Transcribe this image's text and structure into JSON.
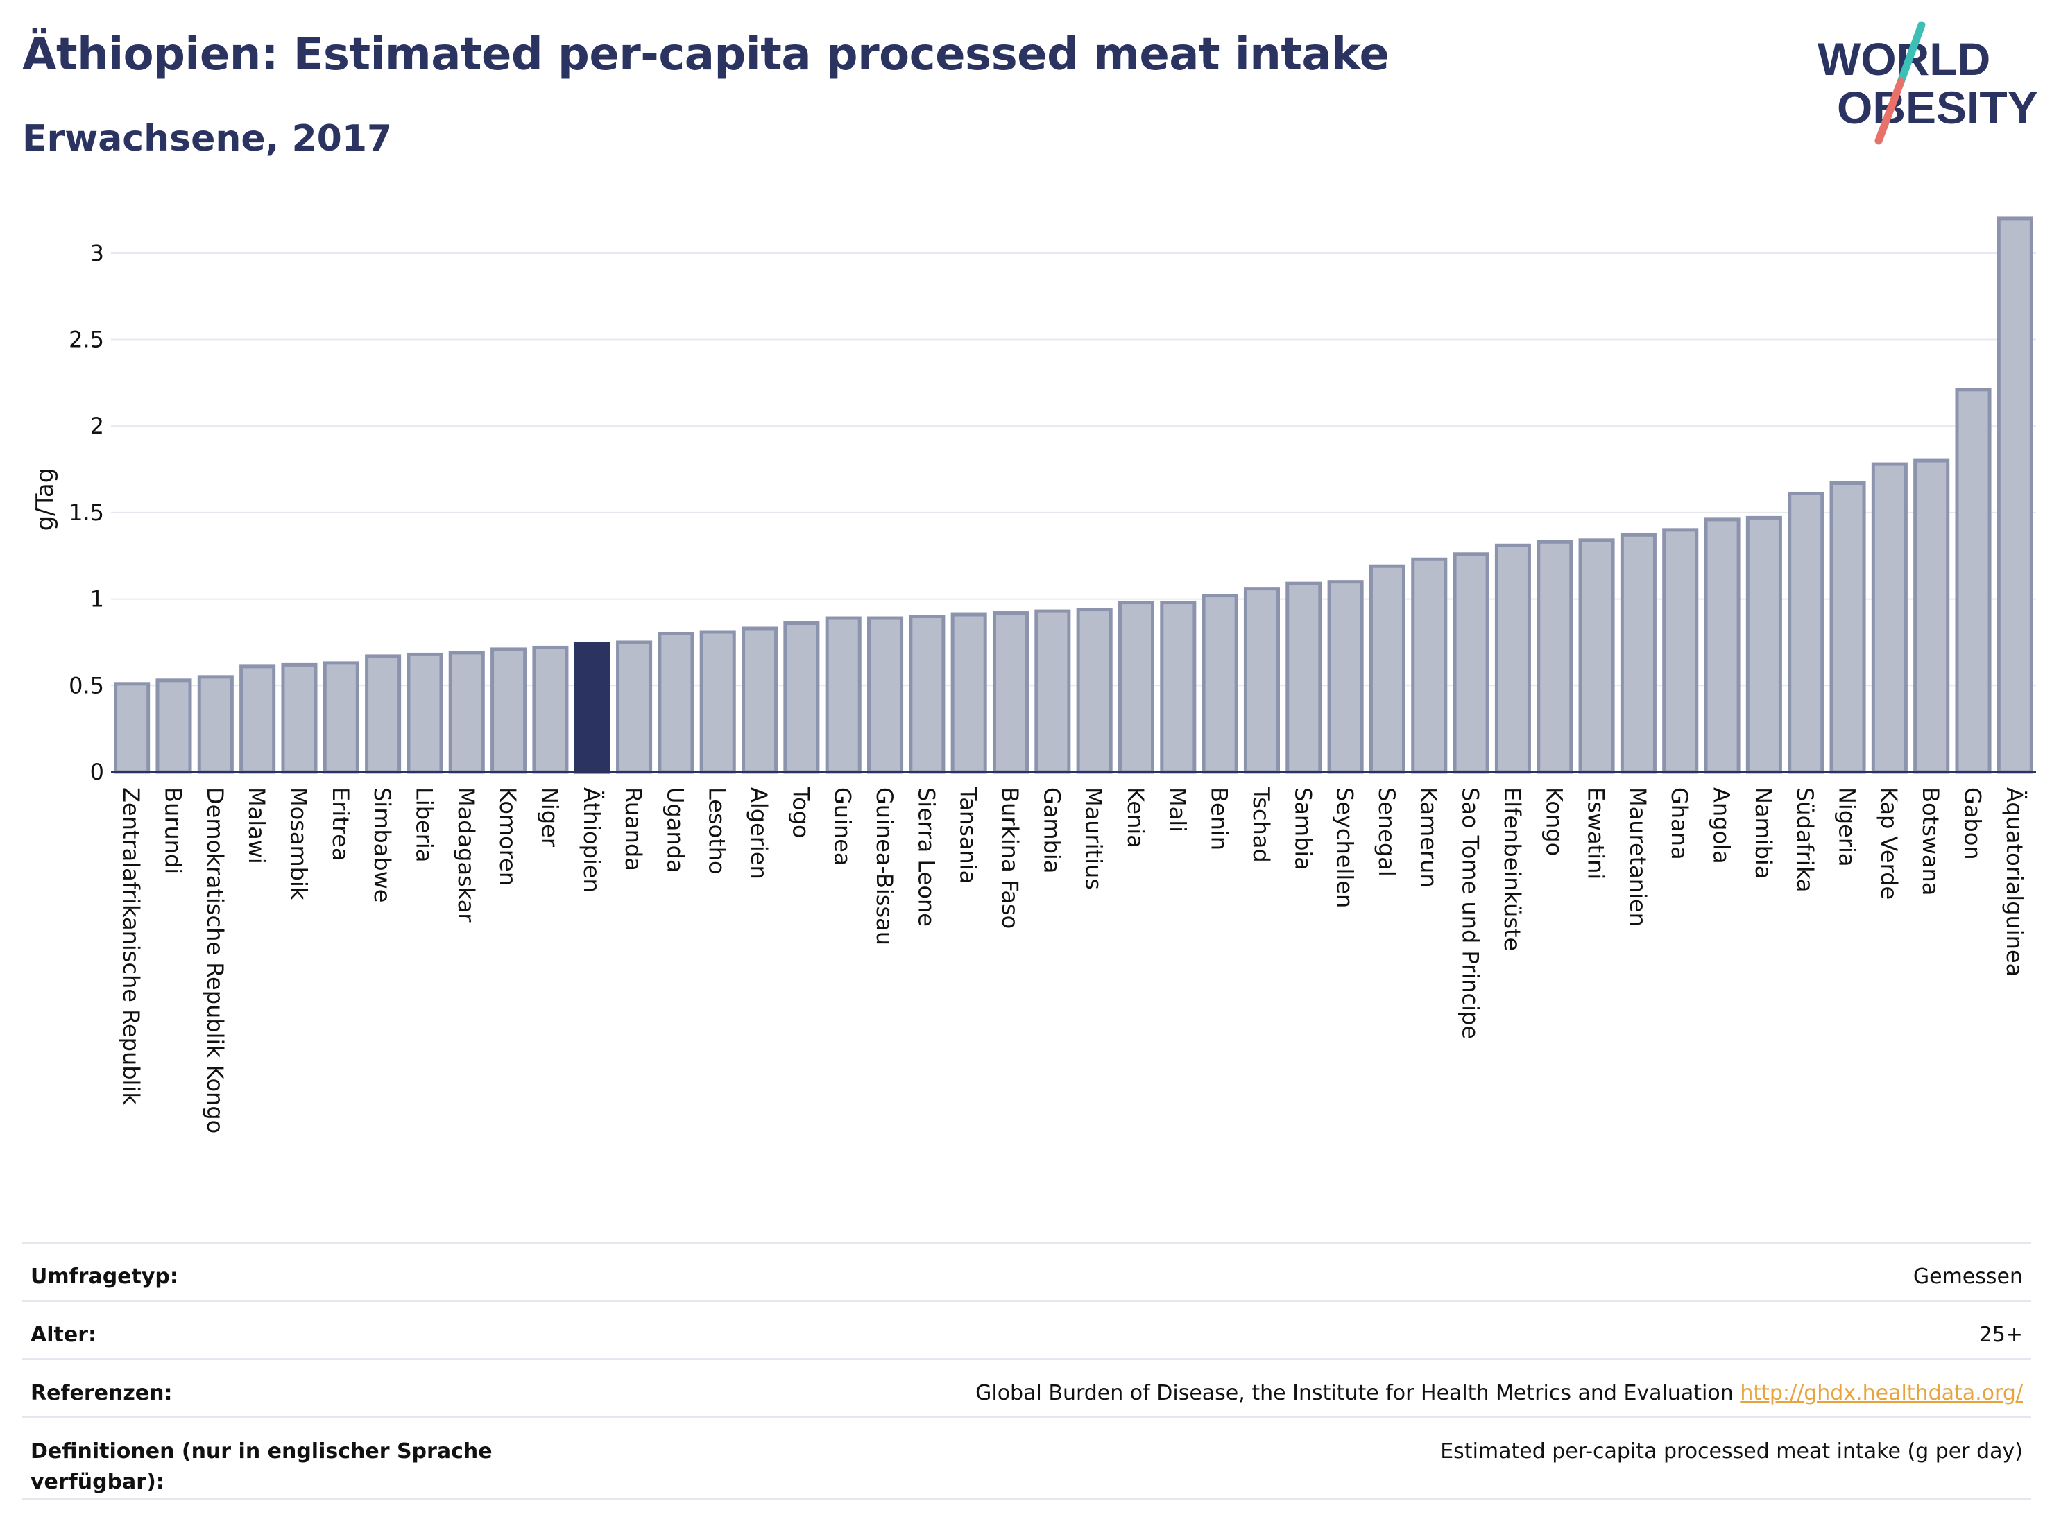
{
  "header": {
    "title": "Äthiopien: Estimated per-capita processed meat intake",
    "subtitle": "Erwachsene, 2017"
  },
  "logo": {
    "line1": "WORLD",
    "line2": "OBESITY",
    "colors": {
      "text": "#2b3361",
      "slash_top": "#3bbfb6",
      "slash_bottom": "#e8726a"
    }
  },
  "colors": {
    "bar": "#b8bdcc",
    "bar_border": "#8c93ad",
    "highlight": "#2b3361",
    "grid": "#e6e8ef"
  },
  "chart_data": {
    "type": "bar",
    "ylabel": "g/Tag",
    "ylim": [
      0,
      3.3
    ],
    "yticks": [
      "0",
      "0.5",
      "1",
      "1.5",
      "2",
      "2.5",
      "3"
    ],
    "highlight_category": "Äthiopien",
    "categories": [
      "Zentralafrikanische Republik",
      "Burundi",
      "Demokratische Republik Kongo",
      "Malawi",
      "Mosambik",
      "Eritrea",
      "Simbabwe",
      "Liberia",
      "Madagaskar",
      "Komoren",
      "Niger",
      "Äthiopien",
      "Ruanda",
      "Uganda",
      "Lesotho",
      "Algerien",
      "Togo",
      "Guinea",
      "Guinea-Bissau",
      "Sierra Leone",
      "Tansania",
      "Burkina Faso",
      "Gambia",
      "Mauritius",
      "Kenia",
      "Mali",
      "Benin",
      "Tschad",
      "Sambia",
      "Seychellen",
      "Senegal",
      "Kamerun",
      "Sao Tome und Principe",
      "Elfenbeinküste",
      "Kongo",
      "Eswatini",
      "Mauretanien",
      "Ghana",
      "Angola",
      "Namibia",
      "Südafrika",
      "Nigeria",
      "Kap Verde",
      "Botswana",
      "Gabon",
      "Äquatorialguinea"
    ],
    "values": [
      0.51,
      0.53,
      0.55,
      0.61,
      0.62,
      0.63,
      0.67,
      0.68,
      0.69,
      0.71,
      0.72,
      0.74,
      0.75,
      0.8,
      0.81,
      0.83,
      0.86,
      0.89,
      0.89,
      0.9,
      0.91,
      0.92,
      0.93,
      0.94,
      0.98,
      0.98,
      1.02,
      1.06,
      1.09,
      1.1,
      1.19,
      1.23,
      1.26,
      1.31,
      1.33,
      1.34,
      1.37,
      1.4,
      1.46,
      1.47,
      1.61,
      1.67,
      1.78,
      1.8,
      2.21,
      3.2
    ]
  },
  "meta": {
    "rows": [
      {
        "key": "Umfragetyp:",
        "value": "Gemessen"
      },
      {
        "key": "Alter:",
        "value": "25+"
      },
      {
        "key": "Referenzen:",
        "value": "Global Burden of Disease, the Institute for Health Metrics and Evaluation",
        "link": "http://ghdx.healthdata.org/"
      },
      {
        "key": "Definitionen (nur in englischer Sprache verfügbar):",
        "value": "Estimated per-capita processed meat intake (g per day)"
      }
    ]
  }
}
